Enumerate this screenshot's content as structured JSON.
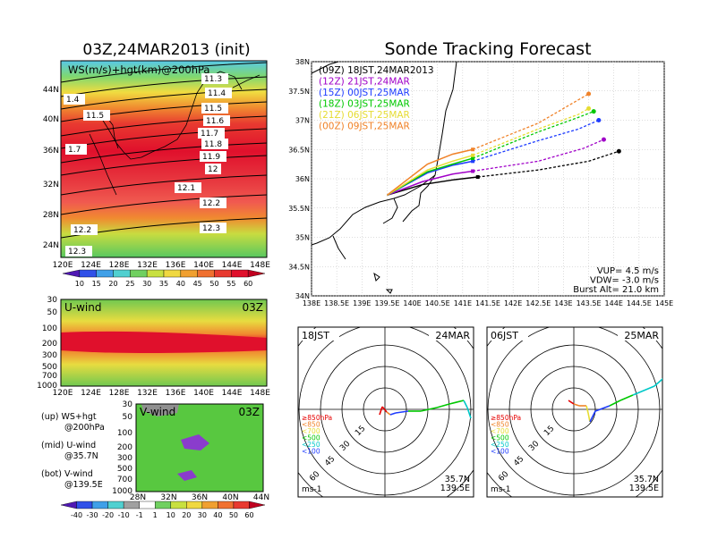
{
  "left": {
    "title": "03Z,24MAR2013 (init)",
    "top_panel": {
      "label": "WS(m/s)+hgt(km)@200hPa",
      "lat_ticks": [
        "44N",
        "40N",
        "36N",
        "32N",
        "28N",
        "24N"
      ],
      "lon_ticks": [
        "120E",
        "124E",
        "128E",
        "132E",
        "136E",
        "140E",
        "144E",
        "148E"
      ],
      "contours": [
        "11.3",
        "11.4",
        "11.5",
        "11.6",
        "11.7",
        "11.8",
        "11.9",
        "12",
        "12.1",
        "12.2",
        "12.3",
        "1.4",
        "11.5",
        "1.7",
        "12.2",
        "12.3"
      ],
      "colorbar": [
        "10",
        "15",
        "20",
        "25",
        "30",
        "35",
        "40",
        "45",
        "50",
        "55",
        "60"
      ]
    },
    "mid_panel": {
      "label": "U-wind",
      "time": "03Z",
      "levels": [
        "30",
        "50",
        "100",
        "200",
        "300",
        "500",
        "700",
        "1000"
      ],
      "lon_ticks": [
        "120E",
        "124E",
        "128E",
        "132E",
        "136E",
        "140E",
        "144E",
        "148E"
      ]
    },
    "bot_panel": {
      "label": "V-wind",
      "time": "03Z",
      "levels": [
        "30",
        "50",
        "100",
        "200",
        "300",
        "500",
        "700",
        "1000"
      ],
      "lat_ticks": [
        "28N",
        "32N",
        "36N",
        "40N",
        "44N"
      ],
      "colorbar": [
        "-40",
        "-30",
        "-20",
        "-10",
        "-1",
        "1",
        "10",
        "20",
        "30",
        "40",
        "50",
        "60"
      ]
    },
    "notes": [
      {
        "a": "(up) WS+hgt",
        "b": "@200hPa"
      },
      {
        "a": "(mid) U-wind",
        "b": "@35.7N"
      },
      {
        "a": "(bot) V-wind",
        "b": "@139.5E"
      }
    ]
  },
  "main": {
    "title": "Sonde Tracking Forecast",
    "lat_ticks": [
      "38N",
      "37.5N",
      "37N",
      "36.5N",
      "36N",
      "35.5N",
      "35N",
      "34.5N",
      "34N"
    ],
    "lon_ticks": [
      "138E",
      "138.5E",
      "139E",
      "139.5E",
      "140E",
      "140.5E",
      "141E",
      "141.5E",
      "142E",
      "142.5E",
      "143E",
      "143.5E",
      "144E",
      "144.5E",
      "145E"
    ],
    "legend": [
      {
        "label": "(09Z)  18JST,24MAR2013",
        "color": "#000000"
      },
      {
        "label": "(12Z)  21JST,24MAR",
        "color": "#a000c8"
      },
      {
        "label": "(15Z)  00JST,25MAR",
        "color": "#1e3cff"
      },
      {
        "label": "(18Z)  03JST,25MAR",
        "color": "#00c800"
      },
      {
        "label": "(21Z)  06JST,25MAR",
        "color": "#e6dc32"
      },
      {
        "label": "(00Z)  09JST,25MAR",
        "color": "#f08228"
      }
    ],
    "params": [
      "VUP=  4.5 m/s",
      "VDW= -3.0 m/s",
      "Burst Alt= 21.0 km"
    ]
  },
  "chart_data": [
    {
      "type": "line",
      "title": "Sonde Tracking Forecast",
      "xlim": [
        138,
        145
      ],
      "ylim": [
        34,
        38
      ],
      "series": [
        {
          "name": "(09Z) 18JST,24MAR2013",
          "color": "#000000",
          "points": [
            [
              139.5,
              35.72
            ],
            [
              140.2,
              35.9
            ],
            [
              140.8,
              35.98
            ],
            [
              141.3,
              36.03
            ],
            [
              142.5,
              36.15
            ],
            [
              143.5,
              36.3
            ],
            [
              144.1,
              36.47
            ]
          ]
        },
        {
          "name": "(12Z) 21JST,24MAR",
          "color": "#a000c8",
          "points": [
            [
              139.5,
              35.72
            ],
            [
              140.2,
              35.95
            ],
            [
              140.8,
              36.08
            ],
            [
              141.2,
              36.13
            ],
            [
              142.5,
              36.3
            ],
            [
              143.4,
              36.52
            ],
            [
              143.8,
              36.67
            ]
          ]
        },
        {
          "name": "(15Z) 00JST,25MAR",
          "color": "#1e3cff",
          "points": [
            [
              139.5,
              35.72
            ],
            [
              140.3,
              36.1
            ],
            [
              140.8,
              36.23
            ],
            [
              141.2,
              36.3
            ],
            [
              142.5,
              36.65
            ],
            [
              143.3,
              36.85
            ],
            [
              143.7,
              37.0
            ]
          ]
        },
        {
          "name": "(18Z) 03JST,25MAR",
          "color": "#00c800",
          "points": [
            [
              139.5,
              35.72
            ],
            [
              140.3,
              36.12
            ],
            [
              140.8,
              36.25
            ],
            [
              141.2,
              36.35
            ],
            [
              142.5,
              36.8
            ],
            [
              143.3,
              37.05
            ],
            [
              143.6,
              37.15
            ]
          ]
        },
        {
          "name": "(21Z) 06JST,25MAR",
          "color": "#e6dc32",
          "points": [
            [
              139.5,
              35.72
            ],
            [
              140.3,
              36.15
            ],
            [
              140.8,
              36.3
            ],
            [
              141.2,
              36.4
            ],
            [
              142.5,
              36.85
            ],
            [
              143.3,
              37.1
            ],
            [
              143.5,
              37.2
            ]
          ]
        },
        {
          "name": "(00Z) 09JST,25MAR",
          "color": "#f08228",
          "points": [
            [
              139.5,
              35.72
            ],
            [
              140.3,
              36.25
            ],
            [
              140.8,
              36.42
            ],
            [
              141.2,
              36.5
            ],
            [
              142.5,
              36.95
            ],
            [
              143.2,
              37.3
            ],
            [
              143.5,
              37.45
            ]
          ]
        }
      ]
    }
  ],
  "polars": [
    {
      "time": "18JST",
      "date": "24MAR",
      "loc_a": "35.7N",
      "loc_b": "139.5E",
      "unit": "ms-1",
      "rings": [
        "15",
        "30",
        "45",
        "60"
      ]
    },
    {
      "time": "06JST",
      "date": "25MAR",
      "loc_a": "35.7N",
      "loc_b": "139.5E",
      "unit": "ms-1",
      "rings": [
        "15",
        "30",
        "45",
        "60"
      ]
    }
  ],
  "polar_legend": [
    {
      "label": "≥850hPa",
      "color": "#e60000"
    },
    {
      "label": "<850",
      "color": "#f08228"
    },
    {
      "label": "<700",
      "color": "#e6dc32"
    },
    {
      "label": "<500",
      "color": "#00c800"
    },
    {
      "label": "<250",
      "color": "#00c8c8"
    },
    {
      "label": "<100",
      "color": "#1e3cff"
    }
  ]
}
